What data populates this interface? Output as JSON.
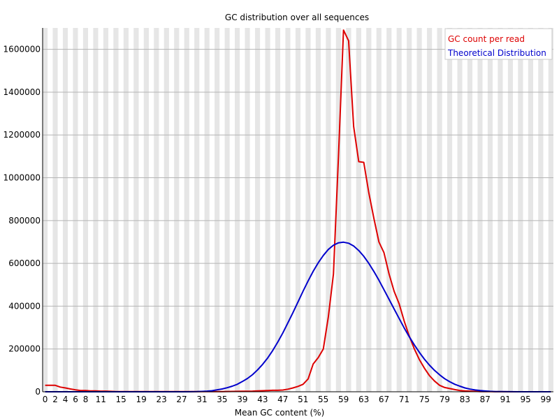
{
  "chart_data": {
    "type": "line",
    "title": "GC distribution over all sequences",
    "xlabel": "Mean GC content (%)",
    "ylabel": "",
    "xlim": [
      0,
      101
    ],
    "ylim": [
      0,
      1700000
    ],
    "grid": true,
    "legend_position": "top-right",
    "x_ticks": [
      "0",
      "2",
      "4",
      "6",
      "8",
      "11",
      "15",
      "19",
      "23",
      "27",
      "31",
      "35",
      "39",
      "43",
      "47",
      "51",
      "55",
      "59",
      "63",
      "67",
      "71",
      "75",
      "79",
      "83",
      "87",
      "91",
      "95",
      "99"
    ],
    "y_ticks": [
      {
        "value": 0,
        "label": "0"
      },
      {
        "value": 200000,
        "label": "200000"
      },
      {
        "value": 400000,
        "label": "400000"
      },
      {
        "value": 600000,
        "label": "600000"
      },
      {
        "value": 800000,
        "label": "800000"
      },
      {
        "value": 1000000,
        "label": "1000000"
      },
      {
        "value": 1200000,
        "label": "1200000"
      },
      {
        "value": 1400000,
        "label": "1400000"
      },
      {
        "value": 1600000,
        "label": "1600000"
      }
    ],
    "series": [
      {
        "name": "GC count per read",
        "color": "#dd0000",
        "points": [
          [
            0,
            30000
          ],
          [
            1,
            30000
          ],
          [
            2,
            30000
          ],
          [
            3,
            22000
          ],
          [
            4,
            18000
          ],
          [
            5,
            13000
          ],
          [
            6,
            9000
          ],
          [
            7,
            6000
          ],
          [
            8,
            6000
          ],
          [
            9,
            4000
          ],
          [
            10,
            4000
          ],
          [
            11,
            3000
          ],
          [
            12,
            3000
          ],
          [
            13,
            2000
          ],
          [
            14,
            1000
          ],
          [
            15,
            1000
          ],
          [
            16,
            1000
          ],
          [
            17,
            800
          ],
          [
            18,
            800
          ],
          [
            19,
            700
          ],
          [
            20,
            600
          ],
          [
            21,
            600
          ],
          [
            22,
            500
          ],
          [
            23,
            500
          ],
          [
            24,
            500
          ],
          [
            25,
            500
          ],
          [
            26,
            500
          ],
          [
            27,
            600
          ],
          [
            28,
            600
          ],
          [
            29,
            700
          ],
          [
            30,
            700
          ],
          [
            31,
            800
          ],
          [
            32,
            800
          ],
          [
            33,
            900
          ],
          [
            34,
            1000
          ],
          [
            35,
            1000
          ],
          [
            36,
            1200
          ],
          [
            37,
            1500
          ],
          [
            38,
            2000
          ],
          [
            39,
            2500
          ],
          [
            40,
            2500
          ],
          [
            41,
            3000
          ],
          [
            42,
            4000
          ],
          [
            43,
            5000
          ],
          [
            44,
            6000
          ],
          [
            45,
            7000
          ],
          [
            46,
            7000
          ],
          [
            47,
            8000
          ],
          [
            48,
            12000
          ],
          [
            49,
            18000
          ],
          [
            50,
            25000
          ],
          [
            51,
            35000
          ],
          [
            52,
            60000
          ],
          [
            53,
            130000
          ],
          [
            54,
            160000
          ],
          [
            55,
            200000
          ],
          [
            56,
            350000
          ],
          [
            57,
            550000
          ],
          [
            58,
            1100000
          ],
          [
            59,
            1690000
          ],
          [
            60,
            1640000
          ],
          [
            61,
            1240000
          ],
          [
            62,
            1075000
          ],
          [
            63,
            1072000
          ],
          [
            64,
            930000
          ],
          [
            65,
            810000
          ],
          [
            66,
            700000
          ],
          [
            67,
            650000
          ],
          [
            68,
            550000
          ],
          [
            69,
            470000
          ],
          [
            70,
            410000
          ],
          [
            71,
            330000
          ],
          [
            72,
            260000
          ],
          [
            73,
            200000
          ],
          [
            74,
            150000
          ],
          [
            75,
            110000
          ],
          [
            76,
            75000
          ],
          [
            77,
            50000
          ],
          [
            78,
            30000
          ],
          [
            79,
            20000
          ],
          [
            80,
            15000
          ],
          [
            81,
            10000
          ],
          [
            82,
            6000
          ],
          [
            83,
            4000
          ],
          [
            84,
            3000
          ],
          [
            85,
            2000
          ],
          [
            86,
            1000
          ],
          [
            87,
            800
          ],
          [
            88,
            600
          ],
          [
            89,
            400
          ],
          [
            90,
            300
          ],
          [
            91,
            200
          ],
          [
            92,
            100
          ],
          [
            93,
            100
          ],
          [
            94,
            0
          ],
          [
            95,
            0
          ],
          [
            96,
            0
          ],
          [
            97,
            0
          ],
          [
            98,
            0
          ],
          [
            99,
            0
          ],
          [
            100,
            0
          ]
        ]
      },
      {
        "name": "Theoretical Distribution",
        "color": "#0000cc",
        "points": [
          [
            0,
            0
          ],
          [
            2,
            0
          ],
          [
            4,
            0
          ],
          [
            6,
            0
          ],
          [
            8,
            0
          ],
          [
            10,
            0
          ],
          [
            12,
            0
          ],
          [
            14,
            0
          ],
          [
            16,
            0
          ],
          [
            18,
            0
          ],
          [
            20,
            0
          ],
          [
            22,
            0
          ],
          [
            24,
            0
          ],
          [
            26,
            0
          ],
          [
            28,
            0
          ],
          [
            30,
            500
          ],
          [
            31,
            1500
          ],
          [
            32,
            3000
          ],
          [
            33,
            5000
          ],
          [
            34,
            9000
          ],
          [
            35,
            13000
          ],
          [
            36,
            19000
          ],
          [
            37,
            26000
          ],
          [
            38,
            35000
          ],
          [
            39,
            48000
          ],
          [
            40,
            62000
          ],
          [
            41,
            80000
          ],
          [
            42,
            102000
          ],
          [
            43,
            128000
          ],
          [
            44,
            158000
          ],
          [
            45,
            193000
          ],
          [
            46,
            232000
          ],
          [
            47,
            275000
          ],
          [
            48,
            322000
          ],
          [
            49,
            370000
          ],
          [
            50,
            420000
          ],
          [
            51,
            470000
          ],
          [
            52,
            518000
          ],
          [
            53,
            563000
          ],
          [
            54,
            603000
          ],
          [
            55,
            637000
          ],
          [
            56,
            665000
          ],
          [
            57,
            685000
          ],
          [
            58,
            696000
          ],
          [
            59,
            699000
          ],
          [
            60,
            694000
          ],
          [
            61,
            681000
          ],
          [
            62,
            660000
          ],
          [
            63,
            633000
          ],
          [
            64,
            600000
          ],
          [
            65,
            562000
          ],
          [
            66,
            521000
          ],
          [
            67,
            477000
          ],
          [
            68,
            432000
          ],
          [
            69,
            387000
          ],
          [
            70,
            342000
          ],
          [
            71,
            298000
          ],
          [
            72,
            257000
          ],
          [
            73,
            219000
          ],
          [
            74,
            184000
          ],
          [
            75,
            152000
          ],
          [
            76,
            124000
          ],
          [
            77,
            100000
          ],
          [
            78,
            79000
          ],
          [
            79,
            61000
          ],
          [
            80,
            47000
          ],
          [
            81,
            35000
          ],
          [
            82,
            26000
          ],
          [
            83,
            18000
          ],
          [
            84,
            12500
          ],
          [
            85,
            8500
          ],
          [
            86,
            5500
          ],
          [
            87,
            3500
          ],
          [
            88,
            2000
          ],
          [
            89,
            1000
          ],
          [
            90,
            500
          ],
          [
            92,
            200
          ],
          [
            94,
            0
          ],
          [
            96,
            0
          ],
          [
            98,
            0
          ],
          [
            100,
            0
          ]
        ]
      }
    ]
  }
}
